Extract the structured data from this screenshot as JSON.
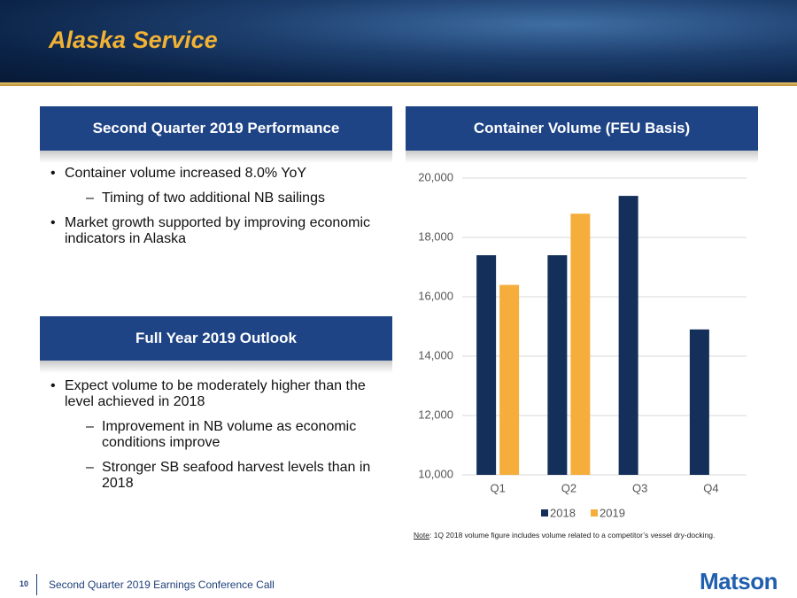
{
  "header": {
    "title": "Alaska Service"
  },
  "left_panels": [
    {
      "heading": "Second Quarter 2019 Performance",
      "bullets": [
        {
          "text": "Container volume increased 8.0% YoY",
          "subs": [
            "Timing of two additional NB sailings"
          ]
        },
        {
          "text": "Market growth supported by improving economic indicators in Alaska"
        }
      ]
    },
    {
      "heading": "Full Year 2019 Outlook",
      "bullets": [
        {
          "text": "Expect volume to be moderately higher than the level achieved in 2018",
          "subs": [
            "Improvement in NB volume as economic conditions improve",
            "Stronger SB seafood harvest levels than in 2018"
          ]
        }
      ]
    }
  ],
  "chart_data": {
    "type": "bar",
    "title": "Container Volume (FEU Basis)",
    "categories": [
      "Q1",
      "Q2",
      "Q3",
      "Q4"
    ],
    "series": [
      {
        "name": "2018",
        "color": "#14305a",
        "values": [
          17400,
          17400,
          19400,
          14900
        ]
      },
      {
        "name": "2019",
        "color": "#f5ad3c",
        "values": [
          16400,
          18800,
          null,
          null
        ]
      }
    ],
    "ylim": [
      10000,
      20000
    ],
    "yticks": [
      {
        "value": 10000,
        "label": "10,000"
      },
      {
        "value": 12000,
        "label": "12,000"
      },
      {
        "value": 14000,
        "label": "14,000"
      },
      {
        "value": 16000,
        "label": "16,000"
      },
      {
        "value": 18000,
        "label": "18,000"
      },
      {
        "value": 20000,
        "label": "20,000"
      }
    ],
    "grid": true,
    "legend": "bottom",
    "note": {
      "label": "Note",
      "text": ": 1Q 2018 volume figure includes volume related to a competitor’s vessel dry-docking."
    }
  },
  "footer": {
    "page": "10",
    "text": "Second Quarter 2019 Earnings Conference Call",
    "logo": "Matson"
  }
}
